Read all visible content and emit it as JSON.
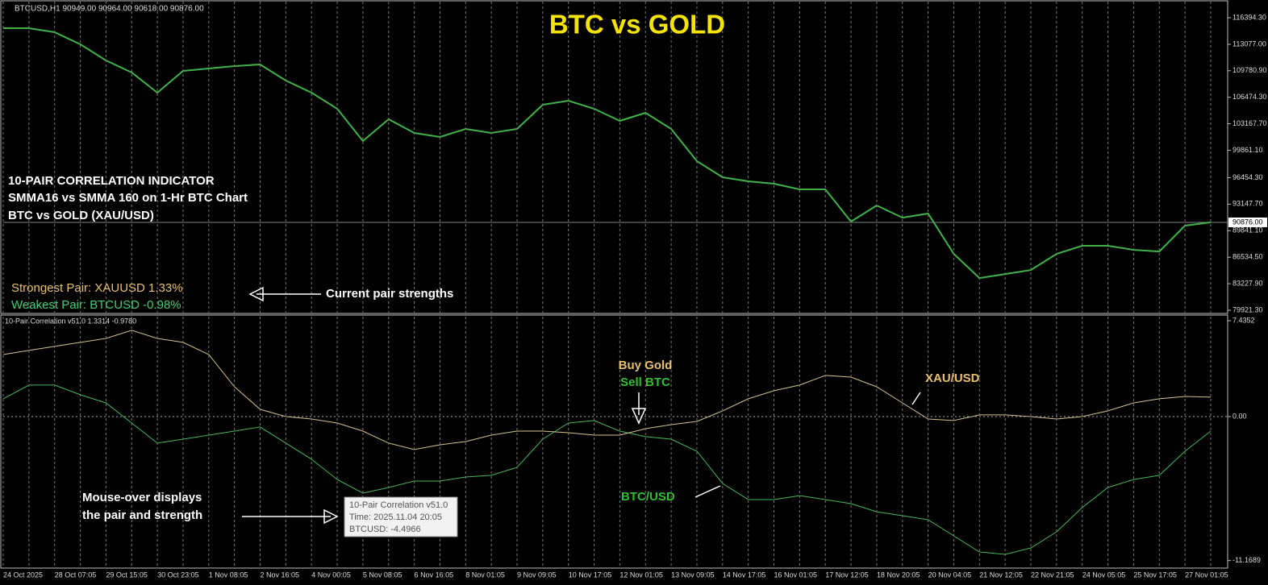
{
  "header": {
    "info": "BTCUSD,H1  90949.00 90964.00 90618.00 90876.00"
  },
  "chart_data": [
    {
      "type": "line",
      "title": "BTC vs GOLD",
      "annotations": [
        "10-PAIR CORRELATION INDICATOR",
        "SMMA16 vs SMMA 160 on 1-Hr BTC Chart",
        "BTC vs GOLD (XAU/USD)"
      ],
      "strongest": "Strongest Pair: XAUUSD  1.33%",
      "weakest": "Weakest Pair:   BTCUSD  -0.98%",
      "pointer_note": "Current pair strengths",
      "current_price": {
        "value": 90876,
        "label": "90876.00"
      },
      "series": [
        {
          "color": "#3fb34a",
          "values": [
            115083,
            115083,
            114581,
            113074,
            111064,
            109557,
            107045,
            109758,
            110059,
            110361,
            110562,
            108552,
            107045,
            105035,
            101016,
            103729,
            102021,
            101518,
            102523,
            102021,
            102523,
            105538,
            106040,
            105035,
            103528,
            104533,
            102523,
            98504,
            96494,
            95992,
            95691,
            94987,
            94987,
            90968,
            92978,
            91470,
            91973,
            86949,
            83934,
            84437,
            84939,
            86949,
            87954,
            87954,
            87451,
            87250,
            90466,
            90868
          ]
        }
      ],
      "ylim": [
        79520,
        118600
      ],
      "yticks": [
        {
          "value": 116394.3,
          "label": "116394.30"
        },
        {
          "value": 113077,
          "label": "113077.00"
        },
        {
          "value": 109780.9,
          "label": "109780.90"
        },
        {
          "value": 106474.3,
          "label": "106474.30"
        },
        {
          "value": 103167.7,
          "label": "103167.70"
        },
        {
          "value": 99861.1,
          "label": "99861.10"
        },
        {
          "value": 96454.3,
          "label": "96454.30"
        },
        {
          "value": 93147.7,
          "label": "93147.70"
        },
        {
          "value": 89841.1,
          "label": "89841.10"
        },
        {
          "value": 86534.5,
          "label": "86534.50"
        },
        {
          "value": 83227.9,
          "label": "83227.90"
        },
        {
          "value": 79921.3,
          "label": "79921.30"
        }
      ]
    },
    {
      "type": "line",
      "title": "10-Pair Correlation v51.0 1.3314 -0.9780",
      "categories": [
        "24 Oct 2025",
        null,
        "28 Oct 07:05",
        null,
        "29 Oct 15:05",
        null,
        "30 Oct 23:05",
        null,
        "1 Nov 08:05",
        null,
        "2 Nov 16:05",
        null,
        "4 Nov 00:05",
        null,
        "5 Nov 08:05",
        null,
        "6 Nov 16:05",
        null,
        "8 Nov 01:05",
        null,
        "9 Nov 09:05",
        null,
        "10 Nov 17:05",
        null,
        "12 Nov 01:05",
        null,
        "13 Nov 09:05",
        null,
        "14 Nov 17:05",
        null,
        "16 Nov 01:05",
        null,
        "17 Nov 12:05",
        null,
        "18 Nov 20:05",
        null,
        "20 Nov 04:05",
        null,
        "21 Nov 12:05",
        null,
        "22 Nov 21:05",
        null,
        "24 Nov 05:05",
        null,
        "25 Nov 17:05",
        null,
        "27 Nov 01:05",
        null
      ],
      "series": [
        {
          "name": "XAU/USD",
          "color": "#d8bf8c",
          "values": [
            4.81,
            5.13,
            5.44,
            5.75,
            6.06,
            6.69,
            6.06,
            5.75,
            4.81,
            2.31,
            0.56,
            0,
            -0.19,
            -0.5,
            -1.13,
            -2.06,
            -2.56,
            -2.19,
            -1.94,
            -1.44,
            -1.13,
            -1.13,
            -1.25,
            -1.44,
            -1.44,
            -0.94,
            -0.63,
            -0.38,
            0.44,
            1.38,
            2.0,
            2.44,
            3.19,
            3.06,
            2.31,
            1.06,
            -0.19,
            -0.31,
            0.13,
            0.13,
            0,
            -0.19,
            0,
            0.44,
            1.06,
            1.38,
            1.56,
            1.5
          ]
        },
        {
          "name": "BTC/USD",
          "color": "#45b85a",
          "values": [
            1.38,
            2.44,
            2.44,
            1.69,
            1.06,
            -0.5,
            -2.06,
            -1.75,
            -1.44,
            -1.13,
            -0.81,
            -2.06,
            -3.31,
            -4.88,
            -5.94,
            -5.5,
            -5.0,
            -5.0,
            -4.69,
            -4.56,
            -3.94,
            -1.75,
            -0.5,
            -0.31,
            -1.13,
            -1.56,
            -1.75,
            -2.69,
            -5.19,
            -6.44,
            -6.44,
            -6.13,
            -6.44,
            -6.75,
            -7.38,
            -7.69,
            -8.0,
            -9.25,
            -10.5,
            -10.69,
            -10.19,
            -8.94,
            -7.06,
            -5.5,
            -4.88,
            -4.56,
            -2.69,
            -1.13
          ]
        }
      ],
      "buy": "Buy Gold",
      "sell": "Sell BTC",
      "mouse_note": [
        "Mouse-over displays",
        "the pair and strength"
      ],
      "tooltip": [
        "10-Pair Correlation v51.0",
        "Time: 2025.11.04 20:05",
        "BTCUSD: -4.4966"
      ],
      "ylim": [
        -11.75,
        7.87
      ],
      "yticks": [
        7.4352,
        {
          "value": 0,
          "label": "0.00"
        },
        -11.1689
      ]
    }
  ]
}
